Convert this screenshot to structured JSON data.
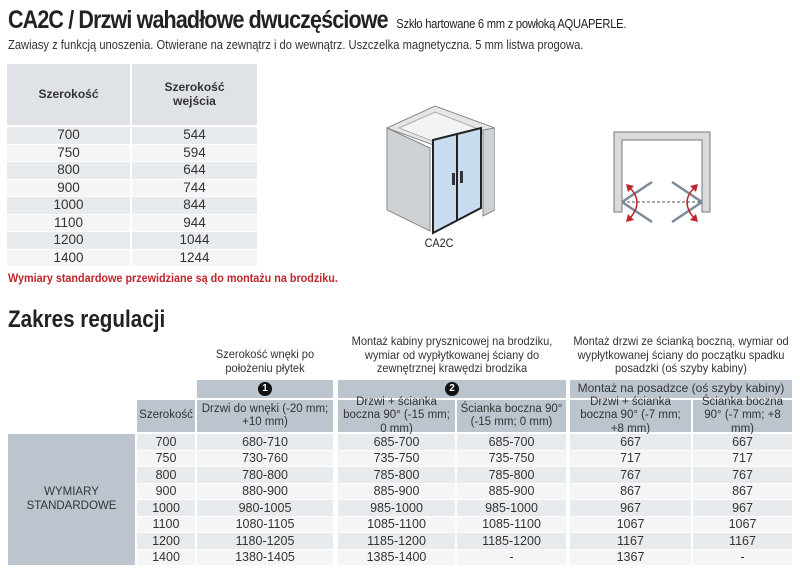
{
  "header": {
    "title": "CA2C / Drzwi wahadłowe dwuczęściowe",
    "subtitle": "Szkło hartowane 6 mm z powłoką AQUAPERLE.",
    "description": "Zawiasy z funkcją unoszenia. Otwierane na zewnątrz i do wewnątrz. Uszczelka magnetyczna. 5 mm listwa progowa."
  },
  "table1": {
    "headers": [
      "Szerokość",
      "Szerokość wejścia"
    ],
    "rows": [
      [
        "700",
        "544"
      ],
      [
        "750",
        "594"
      ],
      [
        "800",
        "644"
      ],
      [
        "900",
        "744"
      ],
      [
        "1000",
        "844"
      ],
      [
        "1100",
        "944"
      ],
      [
        "1200",
        "1044"
      ],
      [
        "1400",
        "1244"
      ]
    ]
  },
  "note": "Wymiary standardowe przewidziane są do montażu na brodziku.",
  "product_image": {
    "label": "CA2C"
  },
  "colors": {
    "header": "#dfe3e8",
    "header_dark": "#bcc5ce",
    "row_a": "#e8ebee",
    "row_b": "#f4f5f6",
    "note": "#c0262d",
    "arrow": "#c0262d"
  },
  "section_title": "Zakres regulacji",
  "table2": {
    "groups": [
      "Szerokość wnęki po położeniu płytek",
      "Montaż kabiny prysznicowej na brodziku, wymiar od wypłytkowanej ściany do zewnętrznej krawędzi brodzika",
      "Montaż drzwi ze ścianką boczną, wymiar od wypłytkowanej ściany do początku spadku posadzki (oś szyby kabiny)"
    ],
    "markers": [
      "1",
      "2",
      "Montaż na posadzce (oś szyby kabiny)"
    ],
    "columns": [
      "Szerokość",
      "Drzwi do wnęki (-20 mm; +10 mm)",
      "Drzwi + ścianka boczna 90° (-15 mm; 0 mm)",
      "Ścianka boczna 90° (-15 mm; 0 mm)",
      "Drzwi + ścianka boczna 90° (-7 mm; +8 mm)",
      "Ścianka boczna 90° (-7 mm; +8 mm)"
    ],
    "row_group": "WYMIARY STANDARDOWE",
    "rows": [
      [
        "700",
        "680-710",
        "685-700",
        "685-700",
        "667",
        "667"
      ],
      [
        "750",
        "730-760",
        "735-750",
        "735-750",
        "717",
        "717"
      ],
      [
        "800",
        "780-800",
        "785-800",
        "785-800",
        "767",
        "767"
      ],
      [
        "900",
        "880-900",
        "885-900",
        "885-900",
        "867",
        "867"
      ],
      [
        "1000",
        "980-1005",
        "985-1000",
        "985-1000",
        "967",
        "967"
      ],
      [
        "1100",
        "1080-1105",
        "1085-1100",
        "1085-1100",
        "1067",
        "1067"
      ],
      [
        "1200",
        "1180-1205",
        "1185-1200",
        "1185-1200",
        "1167",
        "1167"
      ],
      [
        "1400",
        "1380-1405",
        "1385-1400",
        "-",
        "1367",
        "-"
      ]
    ]
  }
}
